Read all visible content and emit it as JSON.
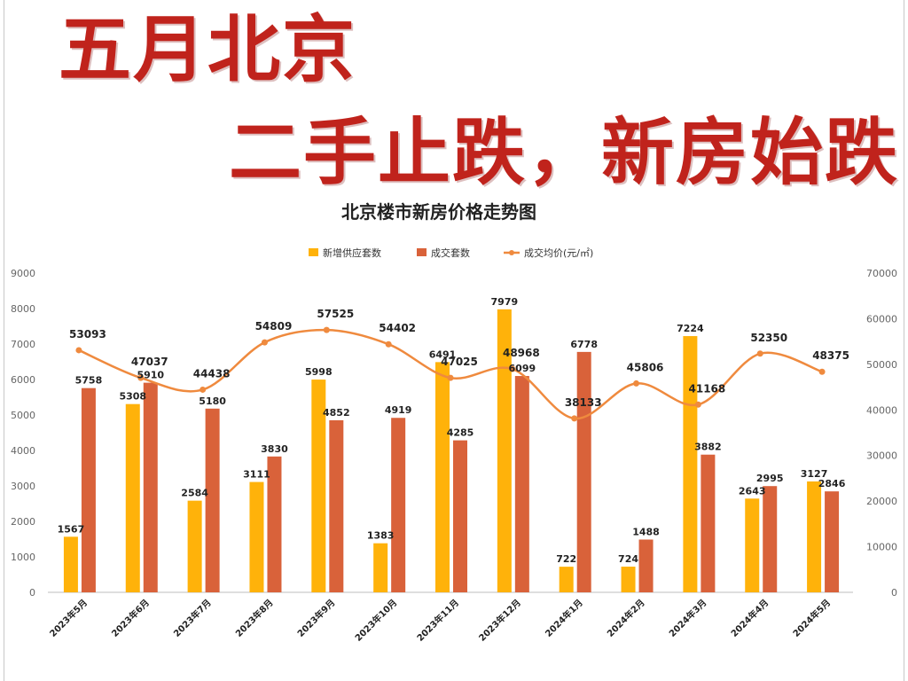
{
  "headline": {
    "line1": "五月北京",
    "line2": "二手止跌，新房始跌"
  },
  "colors": {
    "headline": "#c0231c",
    "supply": "#ffb20a",
    "deals": "#d9623a",
    "price": "#ef8a3e"
  },
  "chart_data": {
    "type": "bar",
    "title": "北京楼市新房价格走势图",
    "xlabel": "",
    "ylabel": "",
    "categories": [
      "2023年5月",
      "2023年6月",
      "2023年7月",
      "2023年8月",
      "2023年9月",
      "2023年10月",
      "2023年11月",
      "2023年12月",
      "2024年1月",
      "2024年2月",
      "2024年3月",
      "2024年4月",
      "2024年5月"
    ],
    "series": [
      {
        "name": "新增供应套数",
        "type": "bar",
        "axis": "left",
        "values": [
          1567,
          5308,
          2584,
          3111,
          5998,
          1383,
          6491,
          7979,
          722,
          724,
          7224,
          2643,
          3127
        ]
      },
      {
        "name": "成交套数",
        "type": "bar",
        "axis": "left",
        "values": [
          5758,
          5910,
          5180,
          3830,
          4852,
          4919,
          4285,
          6099,
          6778,
          1488,
          3882,
          2995,
          2846
        ]
      },
      {
        "name": "成交均价(元/㎡)",
        "type": "line",
        "axis": "right",
        "values": [
          53093,
          47037,
          44438,
          54809,
          57525,
          54402,
          47025,
          48968,
          38133,
          45806,
          41168,
          52350,
          48375
        ]
      }
    ],
    "ylim": [
      0,
      9000
    ],
    "y2lim": [
      0,
      70000
    ],
    "yticks": [
      0,
      1000,
      2000,
      3000,
      4000,
      5000,
      6000,
      7000,
      8000,
      9000
    ],
    "y2ticks": [
      0,
      10000,
      20000,
      30000,
      40000,
      50000,
      60000,
      70000
    ],
    "grid": false,
    "legend_position": "top"
  }
}
